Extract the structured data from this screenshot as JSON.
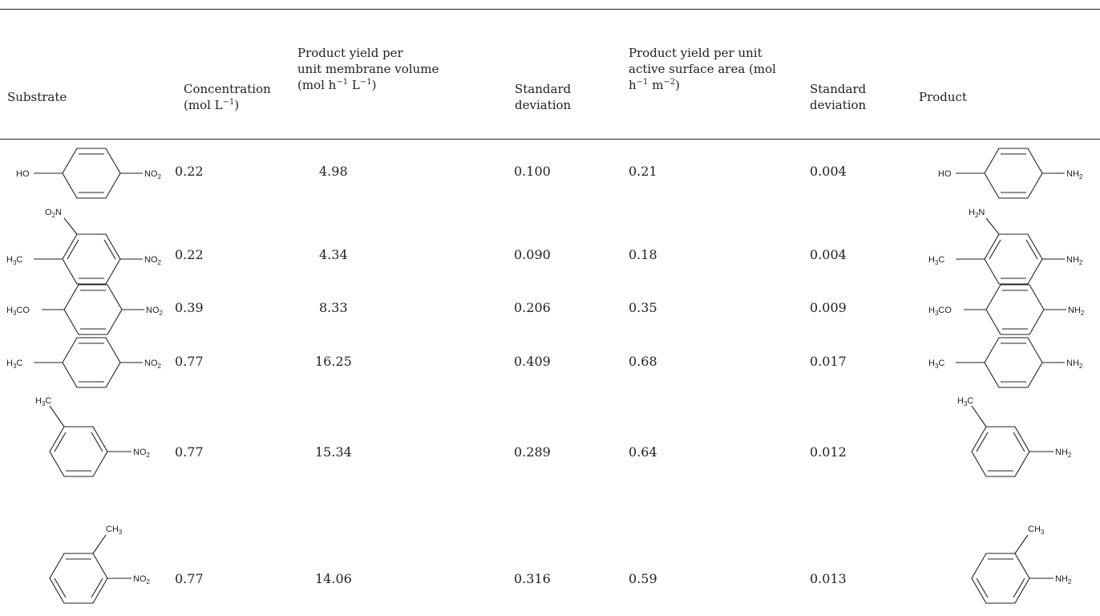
{
  "table": {
    "headers": {
      "substrate": "Substrate",
      "concentration": [
        "Concentration",
        "(mol L",
        "−1",
        ")"
      ],
      "yield_volume": [
        "Product yield per",
        "unit membrane volume",
        "(mol h",
        "−1",
        " L",
        "−1",
        ")"
      ],
      "sd1": [
        "Standard",
        "deviation"
      ],
      "yield_area": [
        "Product yield per unit",
        "active surface area (mol",
        "h",
        "−1",
        " m",
        "−2",
        ")"
      ],
      "sd2": [
        "Standard",
        "deviation"
      ],
      "product": "Product"
    },
    "rows": [
      {
        "substrate": {
          "left": "HO",
          "right": "NO2",
          "top": ""
        },
        "concentration": "0.22",
        "yield_volume": "4.98",
        "sd1": "0.100",
        "yield_area": "0.21",
        "sd2": "0.004",
        "product": {
          "left": "HO",
          "right": "NH2",
          "top": ""
        }
      },
      {
        "substrate": {
          "left": "H3C",
          "right": "NO2",
          "top": "O2N"
        },
        "concentration": "0.22",
        "yield_volume": "4.34",
        "sd1": "0.090",
        "yield_area": "0.18",
        "sd2": "0.004",
        "product": {
          "left": "H3C",
          "right": "NH2",
          "top": "H2N"
        }
      },
      {
        "substrate": {
          "left": "H3CO",
          "right": "NO2",
          "top": ""
        },
        "concentration": "0.39",
        "yield_volume": "8.33",
        "sd1": "0.206",
        "yield_area": "0.35",
        "sd2": "0.009",
        "product": {
          "left": "H3CO",
          "right": "NH2",
          "top": ""
        }
      },
      {
        "substrate": {
          "left": "H3C",
          "right": "NO2",
          "top": ""
        },
        "concentration": "0.77",
        "yield_volume": "16.25",
        "sd1": "0.409",
        "yield_area": "0.68",
        "sd2": "0.017",
        "product": {
          "left": "H3C",
          "right": "NH2",
          "top": ""
        }
      },
      {
        "substrate": {
          "left": "",
          "right": "NO2",
          "top": "H3C"
        },
        "concentration": "0.77",
        "yield_volume": "15.34",
        "sd1": "0.289",
        "yield_area": "0.64",
        "sd2": "0.012",
        "product": {
          "left": "",
          "right": "NH2",
          "top": "H3C"
        }
      },
      {
        "substrate": {
          "left": "",
          "right": "NO2",
          "top": "CH3"
        },
        "concentration": "0.77",
        "yield_volume": "14.06",
        "sd1": "0.316",
        "yield_area": "0.59",
        "sd2": "0.013",
        "product": {
          "left": "",
          "right": "NH2",
          "top": "CH3"
        }
      }
    ]
  }
}
